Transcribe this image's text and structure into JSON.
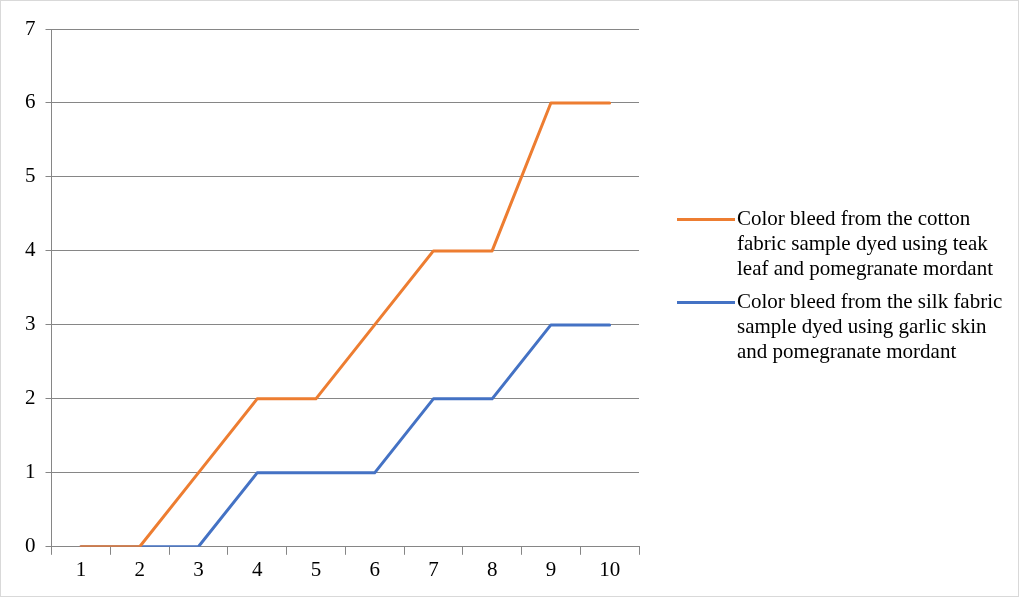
{
  "chart_data": {
    "type": "line",
    "categories": [
      "1",
      "2",
      "3",
      "4",
      "5",
      "6",
      "7",
      "8",
      "9",
      "10"
    ],
    "series": [
      {
        "name": "Color bleed from the cotton fabric sample dyed using teak leaf and pomegranate mordant",
        "color": "#ed7d31",
        "values": [
          0,
          0,
          1,
          2,
          2,
          3,
          4,
          4,
          6,
          6
        ]
      },
      {
        "name": "Color bleed from the silk fabric sample dyed using garlic skin and pomegranate mordant",
        "color": "#4472c4",
        "values": [
          0,
          0,
          0,
          1,
          1,
          1,
          2,
          2,
          3,
          3
        ]
      }
    ],
    "ylim": [
      0,
      7
    ],
    "yticks": [
      0,
      1,
      2,
      3,
      4,
      5,
      6,
      7
    ],
    "grid": "y",
    "legend": "right",
    "marker": "none",
    "line_style": "solid"
  }
}
